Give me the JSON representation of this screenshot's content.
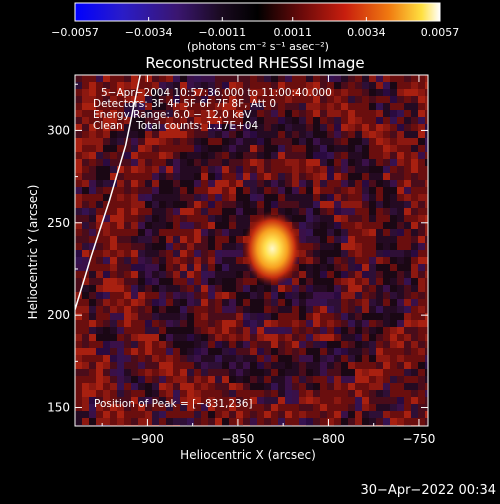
{
  "chart_data": {
    "type": "heatmap",
    "title": "Reconstructed RHESSI Image",
    "xlabel": "Heliocentric X (arcsec)",
    "ylabel": "Heliocentric Y (arcsec)",
    "xlim": [
      -940,
      -745
    ],
    "ylim": [
      140,
      330
    ],
    "x_ticks": [
      -900,
      -850,
      -800,
      -750
    ],
    "x_tick_labels": [
      "−900",
      "−850",
      "−800",
      "−750"
    ],
    "y_ticks": [
      150,
      200,
      250,
      300
    ],
    "y_tick_labels": [
      "150",
      "200",
      "250",
      "300"
    ],
    "colorbar": {
      "min": -0.0057,
      "max": 0.0057,
      "ticks": [
        -0.0057,
        -0.0034,
        -0.0011,
        0.0011,
        0.0034,
        0.0057
      ],
      "tick_labels": [
        "−0.0057",
        "−0.0034",
        "−0.0011",
        "0.0011",
        "0.0034",
        "0.0057"
      ],
      "unit_label": "(photons cm⁻² s⁻¹ asec⁻²)"
    },
    "source": {
      "x": -831,
      "y": 236,
      "peak": 0.0057
    },
    "annotations": [
      "5−Apr−2004 10:57:36.000 to 11:00:40.000",
      "Detectors: 3F 4F 5F 6F 7F 8F, Att 0",
      "Energy Range: 6.0 − 12.0 keV",
      "Clean    Total counts: 1.17E+04"
    ],
    "peak_label": "Position of Peak = [−831,236]",
    "limb_curve": [
      [
        -940,
        203
      ],
      [
        -931,
        232
      ],
      [
        -921,
        262
      ],
      [
        -912,
        292
      ],
      [
        -904,
        330
      ]
    ],
    "grid": false
  },
  "footer": {
    "timestamp": "30−Apr−2022 00:34"
  }
}
